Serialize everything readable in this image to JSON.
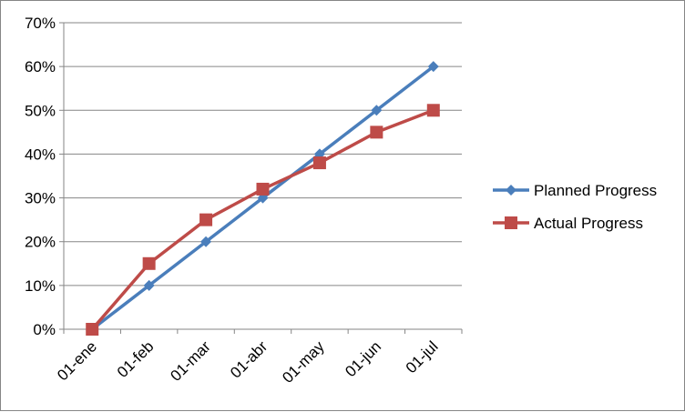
{
  "chart_data": {
    "type": "line",
    "categories": [
      "01-ene",
      "01-feb",
      "01-mar",
      "01-abr",
      "01-may",
      "01-jun",
      "01-jul"
    ],
    "series": [
      {
        "name": "Planned Progress",
        "values": [
          0,
          10,
          20,
          30,
          40,
          50,
          60
        ],
        "color": "#4a7ebb",
        "marker": "diamond"
      },
      {
        "name": "Actual Progress",
        "values": [
          0,
          15,
          25,
          32,
          38,
          45,
          50
        ],
        "color": "#be4b48",
        "marker": "square"
      }
    ],
    "y_ticks": [
      "0%",
      "10%",
      "20%",
      "30%",
      "40%",
      "50%",
      "60%",
      "70%"
    ],
    "ylim": [
      0,
      70
    ],
    "y_unit": "%",
    "grid": true,
    "legend_position": "right"
  }
}
